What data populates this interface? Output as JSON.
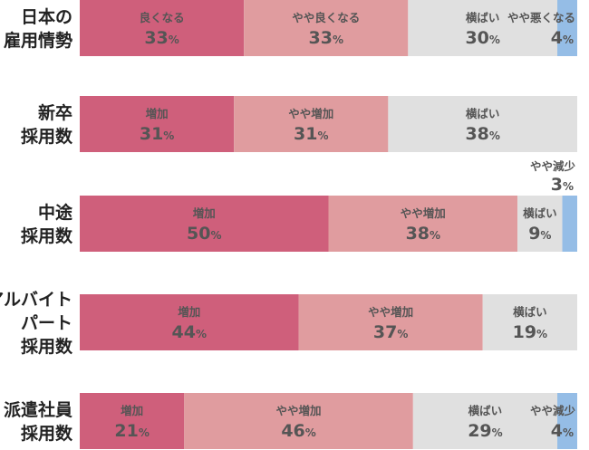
{
  "chart_data": {
    "type": "bar",
    "stacked": "horizontal-100-percent",
    "unit": "%",
    "colors": {
      "positive": "#cf5f7b",
      "slightly_positive": "#e09c9f",
      "neutral": "#e0e0e0",
      "slightly_negative": "#95bde6",
      "dark_text": "#555555",
      "light_text": "#ffffff"
    },
    "rows": [
      {
        "label_lines": [
          "日本の",
          "雇用情勢"
        ],
        "segments": [
          {
            "name": "良くなる",
            "value": 33,
            "kind": "positive"
          },
          {
            "name": "やや良くなる",
            "value": 33,
            "kind": "slightly_positive"
          },
          {
            "name": "横ばい",
            "value": 30,
            "kind": "neutral"
          },
          {
            "name": "やや悪くなる",
            "value": 4,
            "kind": "slightly_negative"
          }
        ]
      },
      {
        "label_lines": [
          "新卒",
          "採用数"
        ],
        "segments": [
          {
            "name": "増加",
            "value": 31,
            "kind": "positive"
          },
          {
            "name": "やや増加",
            "value": 31,
            "kind": "slightly_positive"
          },
          {
            "name": "横ばい",
            "value": 38,
            "kind": "neutral"
          }
        ]
      },
      {
        "label_lines": [
          "中途",
          "採用数"
        ],
        "segments": [
          {
            "name": "増加",
            "value": 50,
            "kind": "positive"
          },
          {
            "name": "やや増加",
            "value": 38,
            "kind": "slightly_positive"
          },
          {
            "name": "横ばい",
            "value": 9,
            "kind": "neutral"
          },
          {
            "name": "やや減少",
            "value": 3,
            "kind": "slightly_negative"
          }
        ]
      },
      {
        "label_lines": [
          "アルバイト",
          "パート",
          "採用数"
        ],
        "segments": [
          {
            "name": "増加",
            "value": 44,
            "kind": "positive"
          },
          {
            "name": "やや増加",
            "value": 37,
            "kind": "slightly_positive"
          },
          {
            "name": "横ばい",
            "value": 19,
            "kind": "neutral"
          }
        ]
      },
      {
        "label_lines": [
          "派遣社員",
          "採用数"
        ],
        "segments": [
          {
            "name": "増加",
            "value": 21,
            "kind": "positive"
          },
          {
            "name": "やや増加",
            "value": 46,
            "kind": "slightly_positive"
          },
          {
            "name": "横ばい",
            "value": 29,
            "kind": "neutral"
          },
          {
            "name": "やや減少",
            "value": 4,
            "kind": "slightly_negative"
          }
        ]
      }
    ]
  }
}
